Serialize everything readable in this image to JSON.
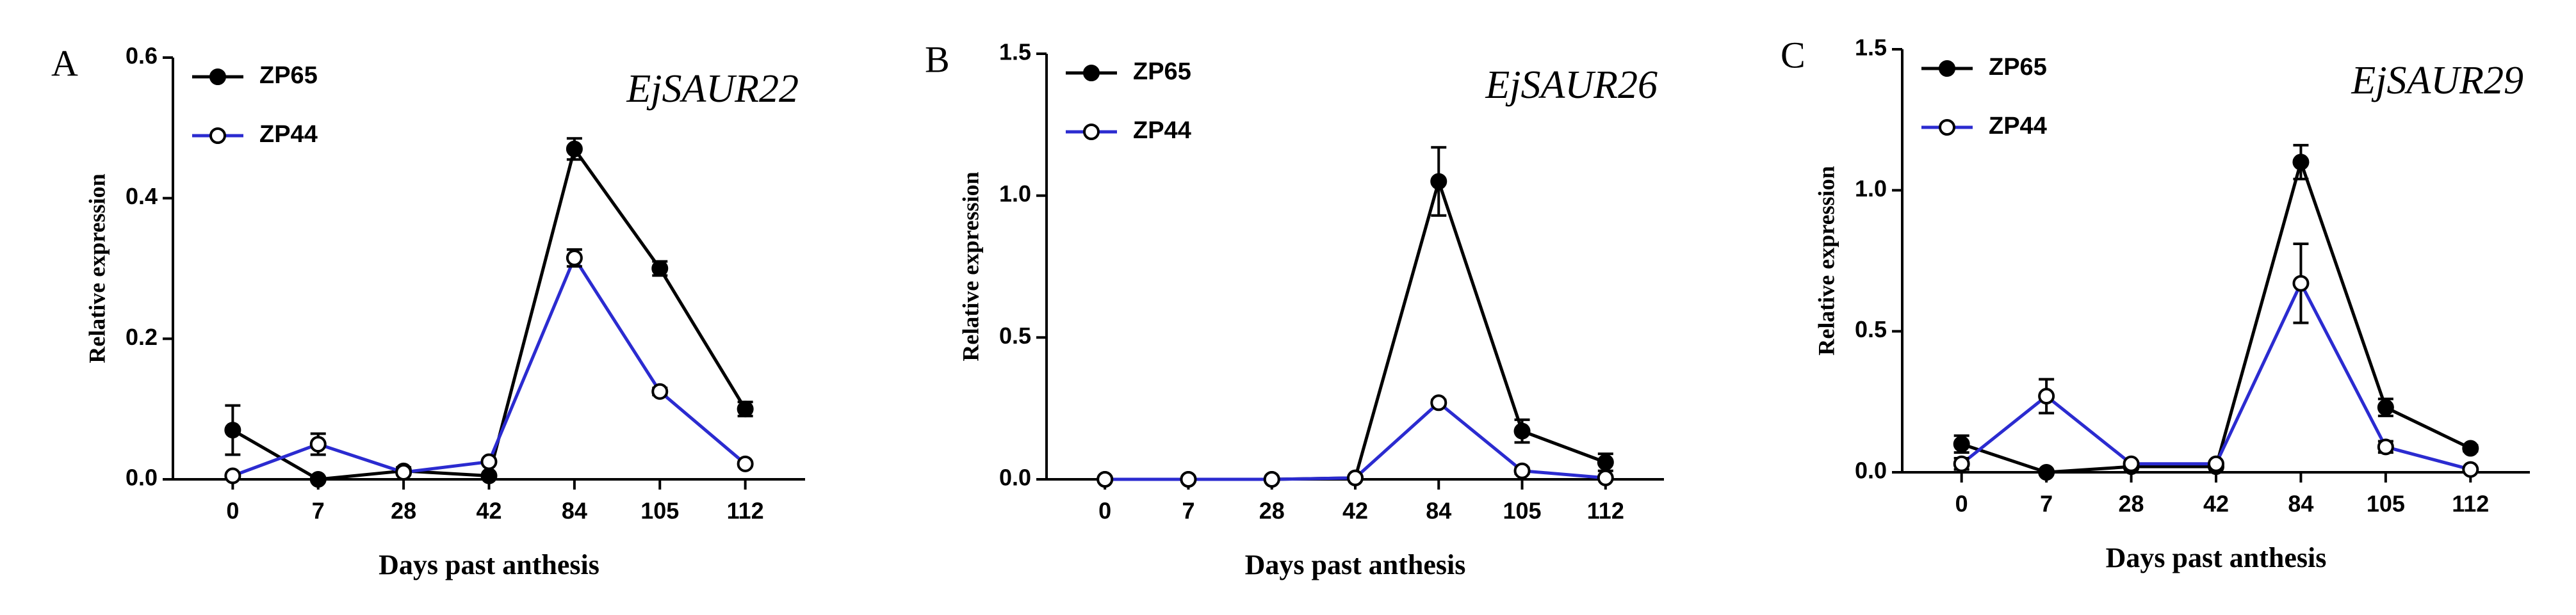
{
  "chart_data": [
    {
      "type": "line",
      "label": "A",
      "title": "EjSAUR22",
      "xlabel": "Days past anthesis",
      "ylabel": "Relative expression",
      "categories": [
        "0",
        "7",
        "28",
        "42",
        "84",
        "105",
        "112"
      ],
      "ylim": [
        0,
        0.6
      ],
      "yticks": [
        {
          "value": 0,
          "label": "0.0"
        },
        {
          "value": 0.2,
          "label": "0.2"
        },
        {
          "value": 0.4,
          "label": "0.4"
        },
        {
          "value": 0.6,
          "label": "0.6"
        }
      ],
      "legend": "upper left",
      "series": [
        {
          "name": "ZP65",
          "color": "#000000",
          "marker": "filled",
          "values": [
            0.07,
            0.0,
            0.012,
            0.005,
            0.47,
            0.3,
            0.1
          ],
          "errors": [
            0.035,
            0.002,
            0.005,
            0.003,
            0.015,
            0.01,
            0.01
          ]
        },
        {
          "name": "ZP44",
          "color": "#2b2bd0",
          "marker": "open",
          "values": [
            0.005,
            0.05,
            0.01,
            0.025,
            0.315,
            0.125,
            0.022
          ],
          "errors": [
            0.003,
            0.015,
            0.003,
            0.003,
            0.012,
            0.005,
            0.003
          ]
        }
      ]
    },
    {
      "type": "line",
      "label": "B",
      "title": "EjSAUR26",
      "xlabel": "Days past anthesis",
      "ylabel": "Relative expression",
      "categories": [
        "0",
        "7",
        "28",
        "42",
        "84",
        "105",
        "112"
      ],
      "ylim": [
        0,
        1.5
      ],
      "yticks": [
        {
          "value": 0,
          "label": "0.0"
        },
        {
          "value": 0.5,
          "label": "0.5"
        },
        {
          "value": 1.0,
          "label": "1.0"
        },
        {
          "value": 1.5,
          "label": "1.5"
        }
      ],
      "legend": "upper left",
      "series": [
        {
          "name": "ZP65",
          "color": "#000000",
          "marker": "filled",
          "values": [
            0.0,
            0.0,
            0.0,
            0.005,
            1.05,
            0.17,
            0.06
          ],
          "errors": [
            0.002,
            0.002,
            0.002,
            0.003,
            0.12,
            0.04,
            0.03
          ]
        },
        {
          "name": "ZP44",
          "color": "#2b2bd0",
          "marker": "open",
          "values": [
            0.0,
            0.0,
            0.0,
            0.005,
            0.27,
            0.03,
            0.005
          ],
          "errors": [
            0.002,
            0.002,
            0.002,
            0.002,
            0.01,
            0.01,
            0.003
          ]
        }
      ]
    },
    {
      "type": "line",
      "label": "C",
      "title": "EjSAUR29",
      "xlabel": "Days past anthesis",
      "ylabel": "Relative expression",
      "categories": [
        "0",
        "7",
        "28",
        "42",
        "84",
        "105",
        "112"
      ],
      "ylim": [
        0,
        1.5
      ],
      "yticks": [
        {
          "value": 0,
          "label": "0.0"
        },
        {
          "value": 0.5,
          "label": "0.5"
        },
        {
          "value": 1.0,
          "label": "1.0"
        },
        {
          "value": 1.5,
          "label": "1.5"
        }
      ],
      "legend": "upper left",
      "series": [
        {
          "name": "ZP65",
          "color": "#000000",
          "marker": "filled",
          "values": [
            0.1,
            0.0,
            0.02,
            0.02,
            1.1,
            0.23,
            0.085
          ],
          "errors": [
            0.03,
            0.002,
            0.005,
            0.005,
            0.06,
            0.03,
            0.01
          ]
        },
        {
          "name": "ZP44",
          "color": "#2b2bd0",
          "marker": "open",
          "values": [
            0.03,
            0.27,
            0.03,
            0.03,
            0.67,
            0.09,
            0.01
          ],
          "errors": [
            0.02,
            0.06,
            0.005,
            0.005,
            0.14,
            0.02,
            0.005
          ]
        }
      ]
    }
  ]
}
